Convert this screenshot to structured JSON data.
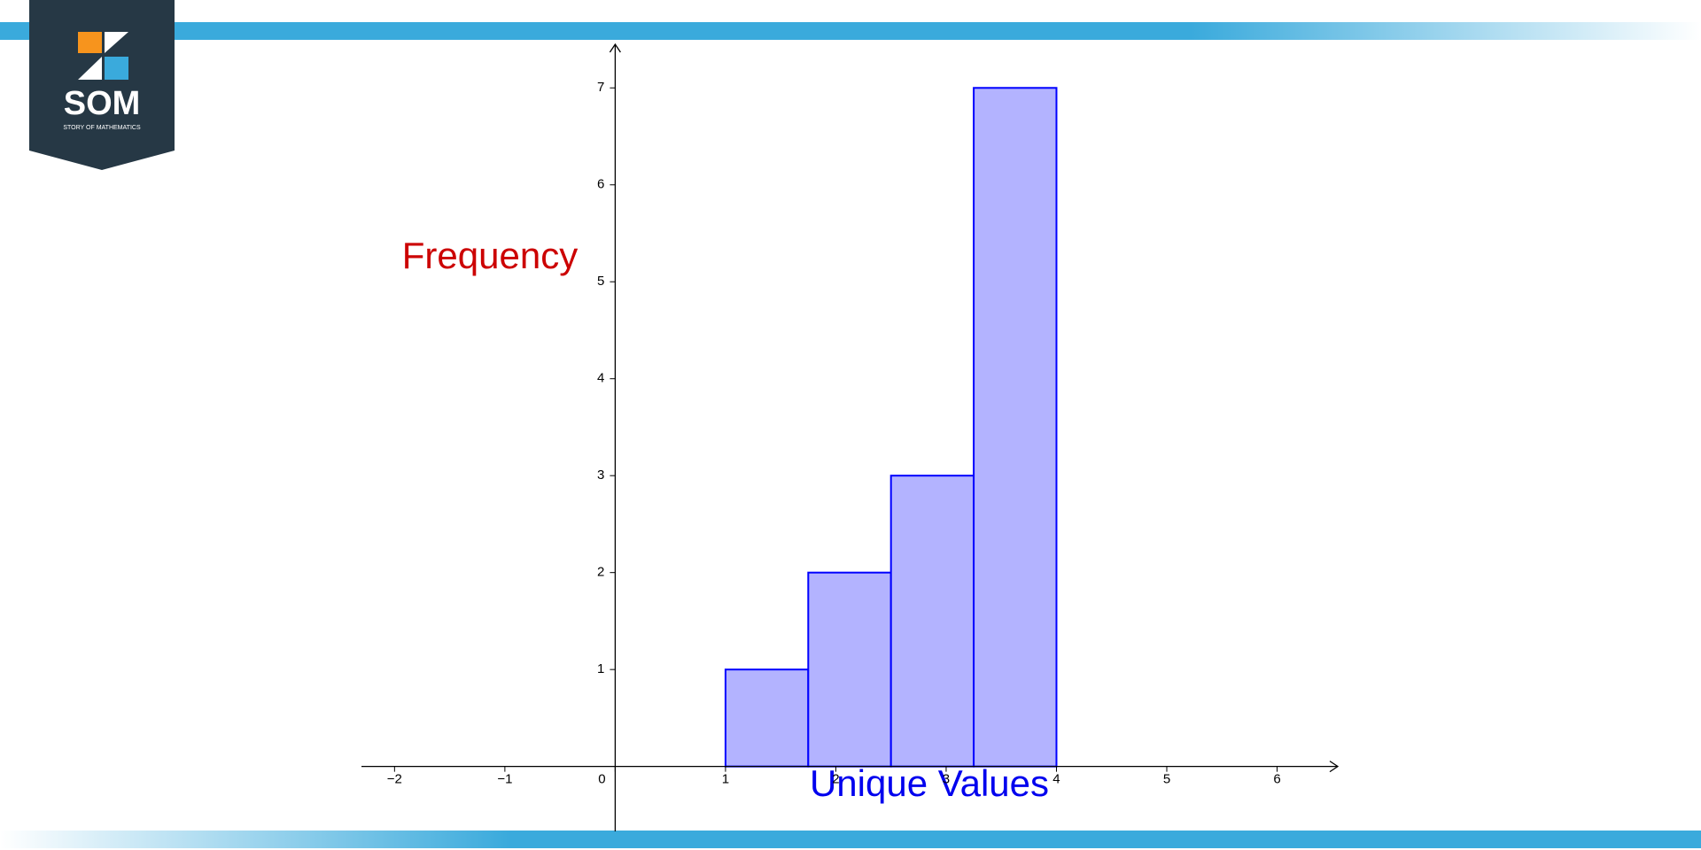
{
  "logo": {
    "text": "SOM",
    "tagline": "STORY OF MATHEMATICS"
  },
  "chart_data": {
    "type": "histogram",
    "xlabel": "Unique Values",
    "ylabel": "Frequency",
    "bins": [
      1,
      1.75,
      2.5,
      3.25,
      4
    ],
    "values": [
      1,
      2,
      3,
      7
    ],
    "color": "#b3b3ff",
    "edgecolor": "#0000ff",
    "xlim": [
      -2.3,
      6.55
    ],
    "ylim": [
      -0.67,
      7.45
    ],
    "xticks": [
      {
        "value": -2,
        "label": "−2"
      },
      {
        "value": -1,
        "label": "−1"
      },
      0,
      1,
      2,
      3,
      4,
      5,
      6
    ],
    "yticks": [
      1,
      2,
      3,
      4,
      5,
      6,
      7
    ],
    "grid": false
  }
}
